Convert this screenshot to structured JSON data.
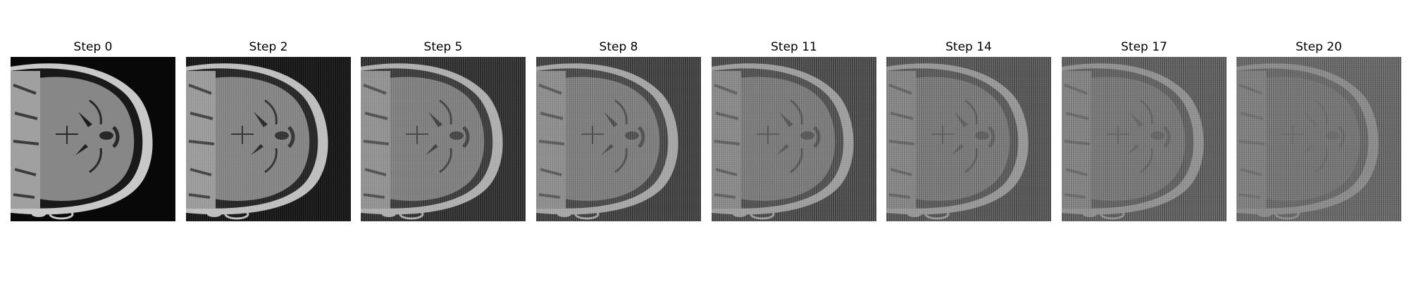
{
  "figure": {
    "panels": [
      {
        "title": "Step 0",
        "step": 0,
        "artifact_level": 0.0
      },
      {
        "title": "Step 2",
        "step": 2,
        "artifact_level": 0.12
      },
      {
        "title": "Step 5",
        "step": 5,
        "artifact_level": 0.35
      },
      {
        "title": "Step 8",
        "step": 8,
        "artifact_level": 0.5
      },
      {
        "title": "Step 11",
        "step": 11,
        "artifact_level": 0.62
      },
      {
        "title": "Step 14",
        "step": 14,
        "artifact_level": 0.75
      },
      {
        "title": "Step 17",
        "step": 17,
        "artifact_level": 0.86
      },
      {
        "title": "Step 20",
        "step": 20,
        "artifact_level": 1.0
      }
    ]
  }
}
